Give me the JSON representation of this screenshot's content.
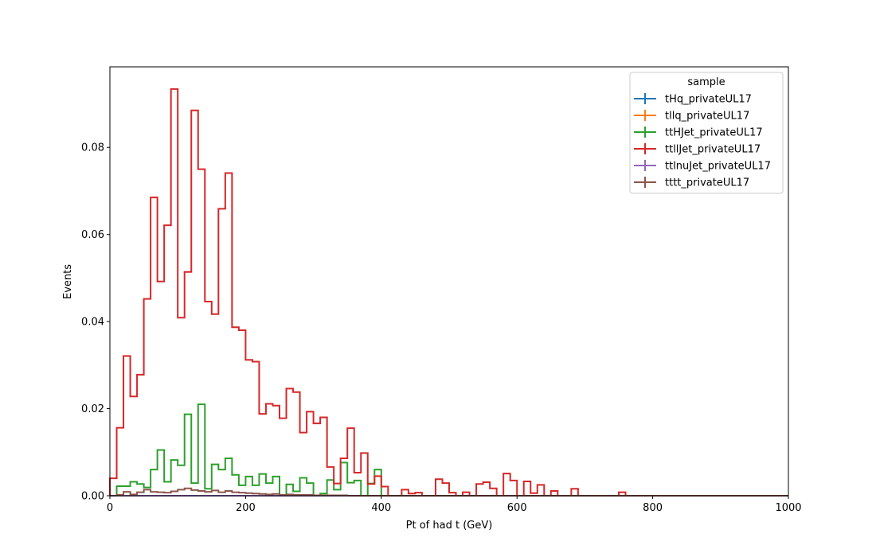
{
  "chart_data": {
    "type": "histogram",
    "title": "",
    "xlabel": "Pt of had t (GeV)",
    "ylabel": "Events",
    "xlim": [
      0,
      1000
    ],
    "ylim": [
      0,
      0.0985
    ],
    "grid": false,
    "x_ticks": [
      0,
      200,
      400,
      600,
      800,
      1000
    ],
    "y_ticks": [
      0.0,
      0.02,
      0.04,
      0.06,
      0.08
    ],
    "x_tick_labels": [
      "0",
      "200",
      "400",
      "600",
      "800",
      "1000"
    ],
    "y_tick_labels": [
      "0.00",
      "0.02",
      "0.04",
      "0.06",
      "0.08"
    ],
    "bin_edges": [
      0,
      10,
      20,
      30,
      40,
      50,
      60,
      70,
      80,
      90,
      100,
      110,
      120,
      130,
      140,
      150,
      160,
      170,
      180,
      190,
      200,
      210,
      220,
      230,
      240,
      250,
      260,
      270,
      280,
      290,
      300,
      310,
      320,
      330,
      340,
      350,
      360,
      370,
      380,
      390,
      400,
      410,
      420,
      430,
      440,
      450,
      460,
      470,
      480,
      490,
      500,
      510,
      520,
      530,
      540,
      550,
      560,
      570,
      580,
      590,
      600,
      610,
      620,
      630,
      640,
      650,
      660,
      670,
      680,
      690,
      700,
      710,
      720,
      730,
      740,
      750,
      760,
      770,
      780,
      790,
      800,
      810,
      820,
      830,
      840,
      850,
      860,
      870,
      880,
      890,
      900,
      910,
      920,
      930,
      940,
      950,
      960,
      970,
      980,
      990,
      1000
    ],
    "legend": {
      "title": "sample",
      "position": "upper right"
    },
    "series": [
      {
        "name": "tHq_privateUL17",
        "color": "#1f77b4",
        "values": [
          0,
          0,
          0,
          0,
          0,
          0,
          0,
          0,
          0,
          0,
          0,
          0,
          0,
          0,
          0,
          0,
          0,
          0,
          0,
          0,
          0,
          0,
          0,
          0,
          0,
          0,
          0,
          0,
          0,
          0,
          0,
          0,
          0,
          0,
          0,
          0,
          0,
          0,
          0,
          0,
          0,
          0,
          0,
          0,
          0,
          0,
          0,
          0,
          0,
          0,
          0,
          0,
          0,
          0,
          0,
          0,
          0,
          0,
          0,
          0,
          0,
          0,
          0,
          0,
          0,
          0,
          0,
          0,
          0,
          0,
          0,
          0,
          0,
          0,
          0,
          0,
          0,
          0,
          0,
          0,
          0,
          0,
          0,
          0,
          0,
          0,
          0,
          0,
          0,
          0,
          0,
          0,
          0,
          0,
          0,
          0,
          0,
          0,
          0,
          0
        ]
      },
      {
        "name": "tllq_privateUL17",
        "color": "#ff7f0e",
        "values": [
          0,
          0,
          0,
          0,
          0,
          0,
          0,
          0,
          0,
          0,
          0,
          0,
          0,
          0,
          0,
          0,
          0,
          0,
          0,
          0,
          0,
          0,
          0,
          0,
          0,
          0,
          0,
          0,
          0,
          0,
          0,
          0,
          0,
          0,
          0,
          0,
          0,
          0,
          0,
          0,
          0,
          0,
          0,
          0,
          0,
          0,
          0,
          0,
          0,
          0,
          0,
          0,
          0,
          0,
          0,
          0,
          0,
          0,
          0,
          0,
          0,
          0,
          0,
          0,
          0,
          0,
          0,
          0,
          0,
          0,
          0,
          0,
          0,
          0,
          0,
          0,
          0,
          0,
          0,
          0,
          0,
          0,
          0,
          0,
          0,
          0,
          0,
          0,
          0,
          0,
          0,
          0,
          0,
          0,
          0,
          0,
          0,
          0,
          0,
          0
        ]
      },
      {
        "name": "ttHJet_privateUL17",
        "color": "#2ca02c",
        "values": [
          0,
          0.0022,
          0.0022,
          0.0032,
          0.0027,
          0.0019,
          0.006,
          0.0105,
          0.0032,
          0.0082,
          0.007,
          0.0187,
          0.0029,
          0.021,
          0.0016,
          0.0072,
          0.006,
          0.0086,
          0.0048,
          0.0024,
          0.0044,
          0.0024,
          0.005,
          0.0029,
          0.0044,
          0,
          0.0026,
          0.001,
          0.0041,
          0.0029,
          0,
          0.0005,
          0.0036,
          0.0014,
          0.0076,
          0.003,
          0.0035,
          0,
          0.0028,
          0.006,
          0,
          0,
          0,
          0,
          0,
          0,
          0,
          0,
          0,
          0,
          0,
          0,
          0,
          0,
          0,
          0,
          0,
          0,
          0,
          0,
          0,
          0,
          0,
          0,
          0,
          0,
          0,
          0,
          0,
          0,
          0,
          0,
          0,
          0,
          0,
          0,
          0,
          0,
          0,
          0,
          0,
          0,
          0,
          0,
          0,
          0,
          0,
          0,
          0,
          0,
          0,
          0,
          0,
          0,
          0,
          0,
          0,
          0,
          0,
          0
        ]
      },
      {
        "name": "ttllJet_privateUL17",
        "color": "#d62728",
        "values": [
          0.004,
          0.0156,
          0.0321,
          0.0228,
          0.0278,
          0.0452,
          0.0685,
          0.0492,
          0.0621,
          0.0934,
          0.0409,
          0.0514,
          0.0885,
          0.075,
          0.0446,
          0.0417,
          0.0659,
          0.0741,
          0.0387,
          0.038,
          0.0312,
          0.0308,
          0.0188,
          0.0211,
          0.0207,
          0.0178,
          0.0246,
          0.0238,
          0.0145,
          0.0193,
          0.0166,
          0.018,
          0.0066,
          0.0028,
          0.0086,
          0.0155,
          0.0053,
          0.0098,
          0.0027,
          0.0045,
          0.0021,
          0,
          0,
          0.0014,
          0.0005,
          0.0007,
          0,
          0,
          0.0038,
          0.0029,
          0.0007,
          0,
          0.0008,
          0,
          0.0027,
          0.0031,
          0.0017,
          0,
          0.0051,
          0.0035,
          0,
          0.0033,
          0.0006,
          0.0025,
          0,
          0.0011,
          0,
          0,
          0.0016,
          0,
          0,
          0,
          0,
          0,
          0,
          0.0008,
          0,
          0,
          0,
          0,
          0,
          0,
          0,
          0,
          0,
          0,
          0,
          0,
          0,
          0,
          0,
          0,
          0,
          0,
          0,
          0,
          0,
          0,
          0,
          0
        ]
      },
      {
        "name": "ttlnuJet_privateUL17",
        "color": "#9467bd",
        "values": [
          0,
          0,
          0,
          0,
          0,
          0,
          0,
          0,
          0,
          0,
          0,
          0,
          0,
          0,
          0,
          0,
          0,
          0,
          0,
          0,
          0,
          0,
          0,
          0,
          0,
          0,
          0,
          0,
          0,
          0,
          0,
          0,
          0,
          0,
          0,
          0,
          0,
          0,
          0,
          0,
          0,
          0,
          0,
          0,
          0,
          0,
          0,
          0,
          0,
          0,
          0,
          0,
          0,
          0,
          0,
          0,
          0,
          0,
          0,
          0,
          0,
          0,
          0,
          0,
          0,
          0,
          0,
          0,
          0,
          0,
          0,
          0,
          0,
          0,
          0,
          0,
          0,
          0,
          0,
          0,
          0,
          0,
          0,
          0,
          0,
          0,
          0,
          0,
          0,
          0,
          0,
          0,
          0,
          0,
          0,
          0,
          0,
          0,
          0,
          0
        ]
      },
      {
        "name": "tttt_privateUL17",
        "color": "#8c564b",
        "values": [
          0,
          0.0002,
          0.0009,
          0.0003,
          0.0008,
          0.0014,
          0.0009,
          0.0008,
          0.0007,
          0.001,
          0.0014,
          0.0017,
          0.0013,
          0.0011,
          0.0009,
          0.0012,
          0.0008,
          0.0011,
          0.0008,
          0.0007,
          0.0006,
          0.0005,
          0.0004,
          0.0003,
          0.0004,
          0.0002,
          0.0003,
          0.0002,
          0.0002,
          0.0002,
          0.0001,
          0.0001,
          0.0001,
          0.0001,
          0.0001,
          0,
          0,
          0,
          0,
          0,
          0,
          0,
          0,
          0,
          0,
          0,
          0,
          0,
          0,
          0,
          0,
          0,
          0,
          0,
          0,
          0,
          0,
          0,
          0,
          0,
          0,
          0,
          0,
          0,
          0,
          0,
          0,
          0,
          0,
          0,
          0,
          0,
          0,
          0,
          0,
          0,
          0,
          0,
          0,
          0,
          0,
          0,
          0,
          0,
          0,
          0,
          0,
          0,
          0,
          0,
          0,
          0,
          0,
          0,
          0,
          0,
          0,
          0,
          0,
          0
        ]
      }
    ]
  }
}
